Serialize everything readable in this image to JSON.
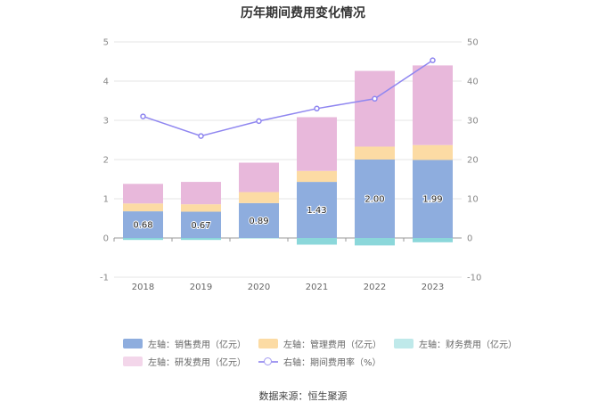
{
  "chart_data": {
    "type": "bar",
    "title": "历年期间费用变化情况",
    "categories": [
      "2018",
      "2019",
      "2020",
      "2021",
      "2022",
      "2023"
    ],
    "left_axis": {
      "min": -1,
      "max": 5,
      "ticks": [
        "-1",
        "0",
        "1",
        "2",
        "3",
        "4",
        "5"
      ]
    },
    "right_axis": {
      "min": -10,
      "max": 50,
      "ticks": [
        "-10",
        "0",
        "10",
        "20",
        "30",
        "40",
        "50"
      ]
    },
    "stacked": true,
    "series": [
      {
        "name": "左轴：销售费用（亿元）",
        "axis": "left",
        "type": "bar",
        "color": "#8eadde",
        "values": [
          0.68,
          0.67,
          0.89,
          1.43,
          2.0,
          1.99
        ],
        "labels": [
          "0.68",
          "0.67",
          "0.89",
          "1.43",
          "2.00",
          "1.99"
        ]
      },
      {
        "name": "左轴：管理费用（亿元）",
        "axis": "left",
        "type": "bar",
        "color": "#fcdba4",
        "values": [
          0.2,
          0.19,
          0.28,
          0.28,
          0.33,
          0.38
        ]
      },
      {
        "name": "左轴：财务费用（亿元）",
        "axis": "left",
        "type": "bar",
        "color": "#8bd7da",
        "values": [
          -0.05,
          -0.05,
          -0.01,
          -0.17,
          -0.19,
          -0.11
        ]
      },
      {
        "name": "左轴：研发费用（亿元）",
        "axis": "left",
        "type": "bar",
        "color": "#e8b8db",
        "values": [
          0.5,
          0.57,
          0.75,
          1.37,
          1.93,
          2.03
        ]
      },
      {
        "name": "右轴：期间费用率（%）",
        "axis": "right",
        "type": "line",
        "color": "#8f86f0",
        "values": [
          31.0,
          26.0,
          29.8,
          33.0,
          35.5,
          45.3
        ]
      }
    ],
    "legend_position": "bottom",
    "grid": true
  },
  "source": "数据来源：恒生聚源"
}
